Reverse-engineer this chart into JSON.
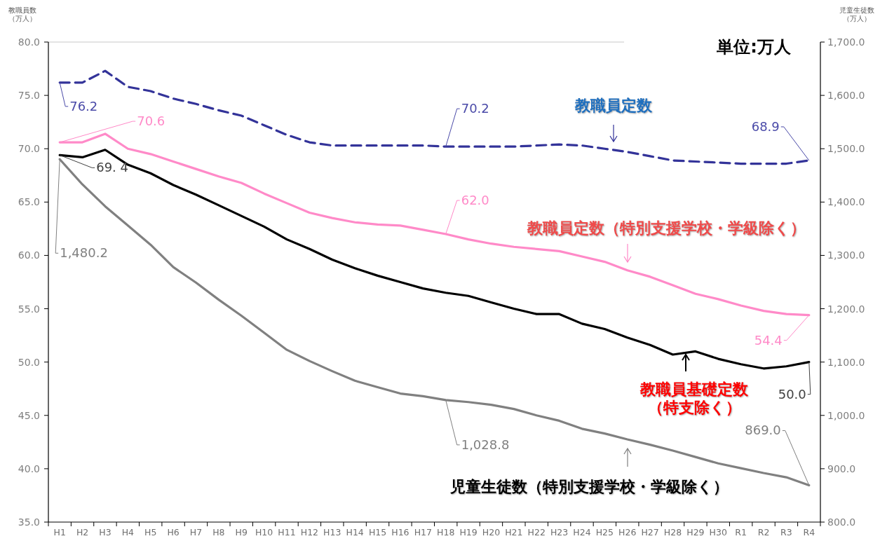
{
  "chart_data": {
    "type": "line",
    "ylabel": "教職員数（万人）",
    "y2label": "児童生徒数（万人）",
    "annotations": [
      "単位:万人"
    ],
    "categories": [
      "H1",
      "H2",
      "H3",
      "H4",
      "H5",
      "H6",
      "H7",
      "H8",
      "H9",
      "H10",
      "H11",
      "H12",
      "H13",
      "H14",
      "H15",
      "H16",
      "H17",
      "H18",
      "H19",
      "H20",
      "H21",
      "H22",
      "H23",
      "H24",
      "H25",
      "H26",
      "H27",
      "H28",
      "H29",
      "H30",
      "R1",
      "R2",
      "R3",
      "R4"
    ],
    "ylim": [
      35,
      80
    ],
    "yticks": [
      {
        "value": 35,
        "label": "35.0"
      },
      {
        "value": 40,
        "label": "40.0"
      },
      {
        "value": 45,
        "label": "45.0"
      },
      {
        "value": 50,
        "label": "50.0"
      },
      {
        "value": 55,
        "label": "55.0"
      },
      {
        "value": 60,
        "label": "60.0"
      },
      {
        "value": 65,
        "label": "65.0"
      },
      {
        "value": 70,
        "label": "70.0"
      },
      {
        "value": 75,
        "label": "75.0"
      },
      {
        "value": 80,
        "label": "80.0"
      }
    ],
    "y2lim": [
      800,
      1700
    ],
    "y2ticks": [
      {
        "value": 800,
        "label": "800.0"
      },
      {
        "value": 900,
        "label": "900.0"
      },
      {
        "value": 1000,
        "label": "1,000.0"
      },
      {
        "value": 1100,
        "label": "1,100.0"
      },
      {
        "value": 1200,
        "label": "1,200.0"
      },
      {
        "value": 1300,
        "label": "1,300.0"
      },
      {
        "value": 1400,
        "label": "1,400.0"
      },
      {
        "value": 1500,
        "label": "1,500.0"
      },
      {
        "value": 1600,
        "label": "1,600.0"
      },
      {
        "value": 1700,
        "label": "1,700.0"
      }
    ],
    "grid": false,
    "legend": "bottom right",
    "series": [
      {
        "name": "教職員定数",
        "color": "#333399",
        "line_style": "dashed",
        "values": [
          76.2,
          76.2,
          77.3,
          75.8,
          75.4,
          74.7,
          74.2,
          73.6,
          73.1,
          72.2,
          71.3,
          70.6,
          70.3,
          70.3,
          70.3,
          70.3,
          70.3,
          70.2,
          70.2,
          70.2,
          70.2,
          70.3,
          70.4,
          70.3,
          70.0,
          69.7,
          69.3,
          68.9,
          68.8,
          68.7,
          68.6,
          68.6,
          68.6,
          68.9
        ],
        "value_labels": [
          "76.2",
          null,
          null,
          null,
          null,
          null,
          null,
          null,
          null,
          null,
          null,
          null,
          null,
          null,
          null,
          null,
          null,
          "70.2",
          null,
          null,
          null,
          null,
          null,
          null,
          null,
          null,
          null,
          null,
          null,
          null,
          null,
          null,
          null,
          "68.9"
        ]
      },
      {
        "name": "教職員定数（特別支援学校・学級除く）",
        "color": "#ff8ac8",
        "line_style": "solid",
        "values": [
          70.6,
          70.6,
          71.4,
          70.0,
          69.5,
          68.8,
          68.1,
          67.4,
          66.8,
          65.8,
          64.9,
          64.0,
          63.5,
          63.1,
          62.9,
          62.8,
          62.4,
          62.0,
          61.5,
          61.1,
          60.8,
          60.6,
          60.4,
          59.9,
          59.4,
          58.6,
          58.0,
          57.2,
          56.4,
          55.9,
          55.3,
          54.8,
          54.5,
          54.4
        ],
        "value_labels": [
          "70.6",
          null,
          null,
          null,
          null,
          null,
          null,
          null,
          null,
          null,
          null,
          null,
          null,
          null,
          null,
          null,
          null,
          "62.0",
          null,
          null,
          null,
          null,
          null,
          null,
          null,
          null,
          null,
          null,
          null,
          null,
          null,
          null,
          null,
          "54.4"
        ]
      },
      {
        "name": "教職員基礎定数（特支除く）",
        "color": "#000000",
        "line_style": "solid",
        "values": [
          69.4,
          69.2,
          69.9,
          68.5,
          67.7,
          66.6,
          65.7,
          64.7,
          63.7,
          62.7,
          61.5,
          60.6,
          59.6,
          58.8,
          58.1,
          57.5,
          56.9,
          56.5,
          56.2,
          55.6,
          55.0,
          54.5,
          54.5,
          53.6,
          53.1,
          52.3,
          51.6,
          50.7,
          51.0,
          50.3,
          49.8,
          49.4,
          49.6,
          50.0
        ],
        "value_labels": [
          "69. 4",
          null,
          null,
          null,
          null,
          null,
          null,
          null,
          null,
          null,
          null,
          null,
          null,
          null,
          null,
          null,
          null,
          null,
          null,
          null,
          null,
          null,
          null,
          null,
          null,
          null,
          null,
          null,
          null,
          null,
          null,
          null,
          null,
          "50.0"
        ]
      },
      {
        "name": "児童生徒数（特別支援学校・学級除く）",
        "color": "#808080",
        "line_style": "solid",
        "axis": "y2",
        "values": [
          1480.2,
          1433,
          1392,
          1356,
          1320,
          1278,
          1249,
          1217,
          1187,
          1155,
          1123,
          1102,
          1083,
          1065,
          1053,
          1041,
          1036,
          1028.8,
          1025,
          1020,
          1012,
          1000,
          990,
          975,
          966,
          955,
          945,
          934,
          922,
          910,
          901,
          892,
          884,
          869.0
        ],
        "value_labels": [
          "1,480.2",
          null,
          null,
          null,
          null,
          null,
          null,
          null,
          null,
          null,
          null,
          null,
          null,
          null,
          null,
          null,
          null,
          "1,028.8",
          null,
          null,
          null,
          null,
          null,
          null,
          null,
          null,
          null,
          null,
          null,
          null,
          null,
          null,
          null,
          "869.0"
        ]
      }
    ]
  }
}
